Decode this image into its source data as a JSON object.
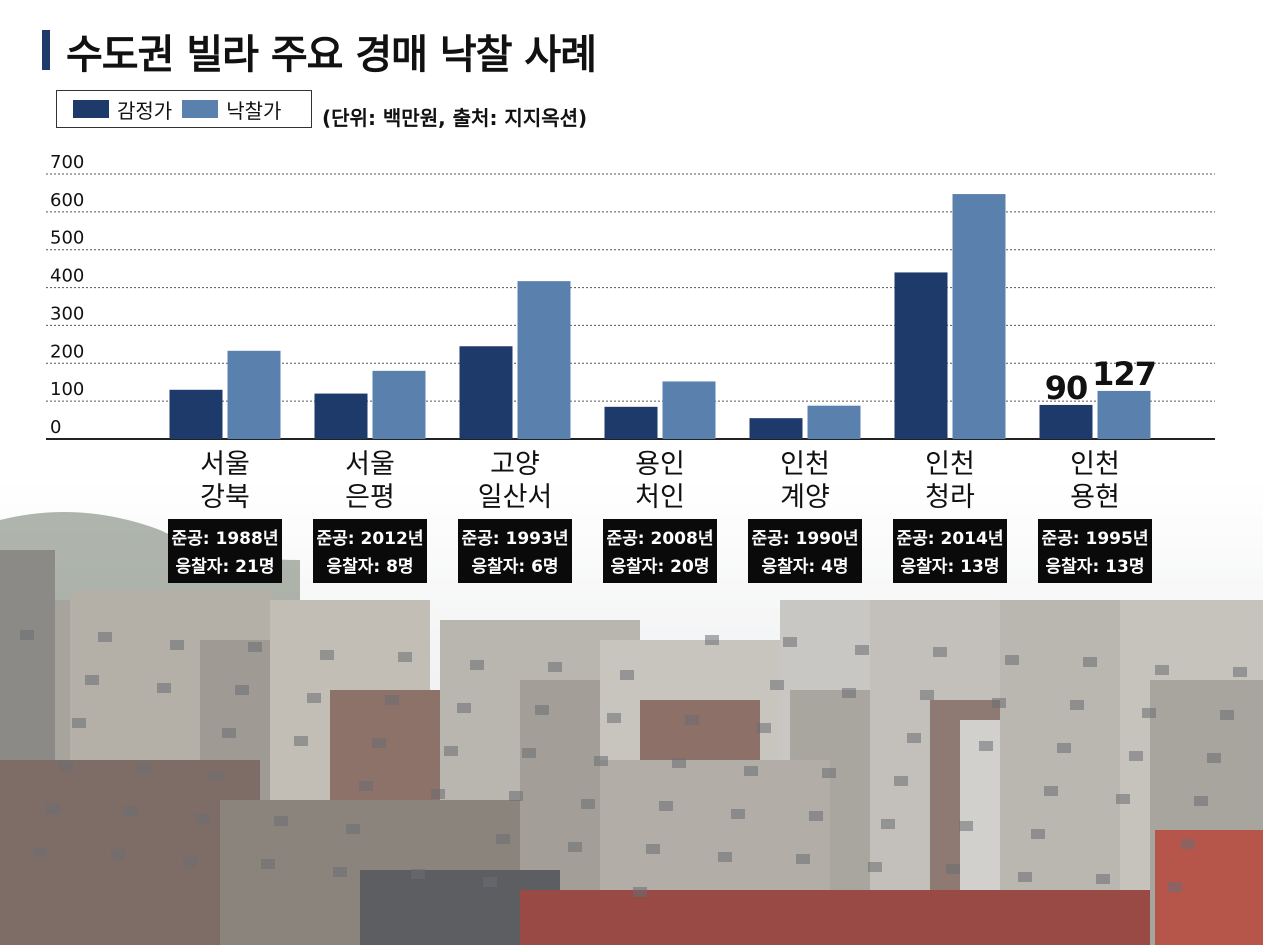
{
  "title": "수도권 빌라 주요 경매 낙찰 사례",
  "unit_note": "(단위: 백만원, 출처: 지지옥션)",
  "colors": {
    "appraisal": "#1e3a6b",
    "winning_bid": "#5a80ad",
    "title_bar": "#1e3a6b",
    "info_box": "#0a0a0a",
    "info_text": "#ffffff"
  },
  "chart_data": {
    "type": "bar",
    "title": "수도권 빌라 주요 경매 낙찰 사례",
    "xlabel": "",
    "ylabel": "",
    "ylim": [
      0,
      700
    ],
    "yticks": [
      0,
      100,
      200,
      300,
      400,
      500,
      600,
      700
    ],
    "grid": true,
    "legend_position": "top-left",
    "categories": [
      {
        "lines": [
          "서울",
          "강북"
        ],
        "info": [
          "준공: 1988년",
          "응찰자: 21명"
        ]
      },
      {
        "lines": [
          "서울",
          "은평"
        ],
        "info": [
          "준공: 2012년",
          "응찰자: 8명"
        ]
      },
      {
        "lines": [
          "고양",
          "일산서"
        ],
        "info": [
          "준공: 1993년",
          "응찰자: 6명"
        ]
      },
      {
        "lines": [
          "용인",
          "처인"
        ],
        "info": [
          "준공: 2008년",
          "응찰자: 20명"
        ]
      },
      {
        "lines": [
          "인천",
          "계양"
        ],
        "info": [
          "준공: 1990년",
          "응찰자: 4명"
        ]
      },
      {
        "lines": [
          "인천",
          "청라"
        ],
        "info": [
          "준공: 2014년",
          "응찰자: 13명"
        ]
      },
      {
        "lines": [
          "인천",
          "용현"
        ],
        "info": [
          "준공: 1995년",
          "응찰자: 13명"
        ]
      }
    ],
    "series": [
      {
        "name": "감정가",
        "values": [
          130,
          120,
          245,
          85,
          55,
          440,
          90
        ]
      },
      {
        "name": "낙찰가",
        "values": [
          233,
          180,
          417,
          152,
          88,
          647,
          127
        ]
      }
    ],
    "data_labels": [
      {
        "series": 0,
        "index": 6,
        "text": "90"
      },
      {
        "series": 1,
        "index": 6,
        "text": "127"
      }
    ]
  }
}
